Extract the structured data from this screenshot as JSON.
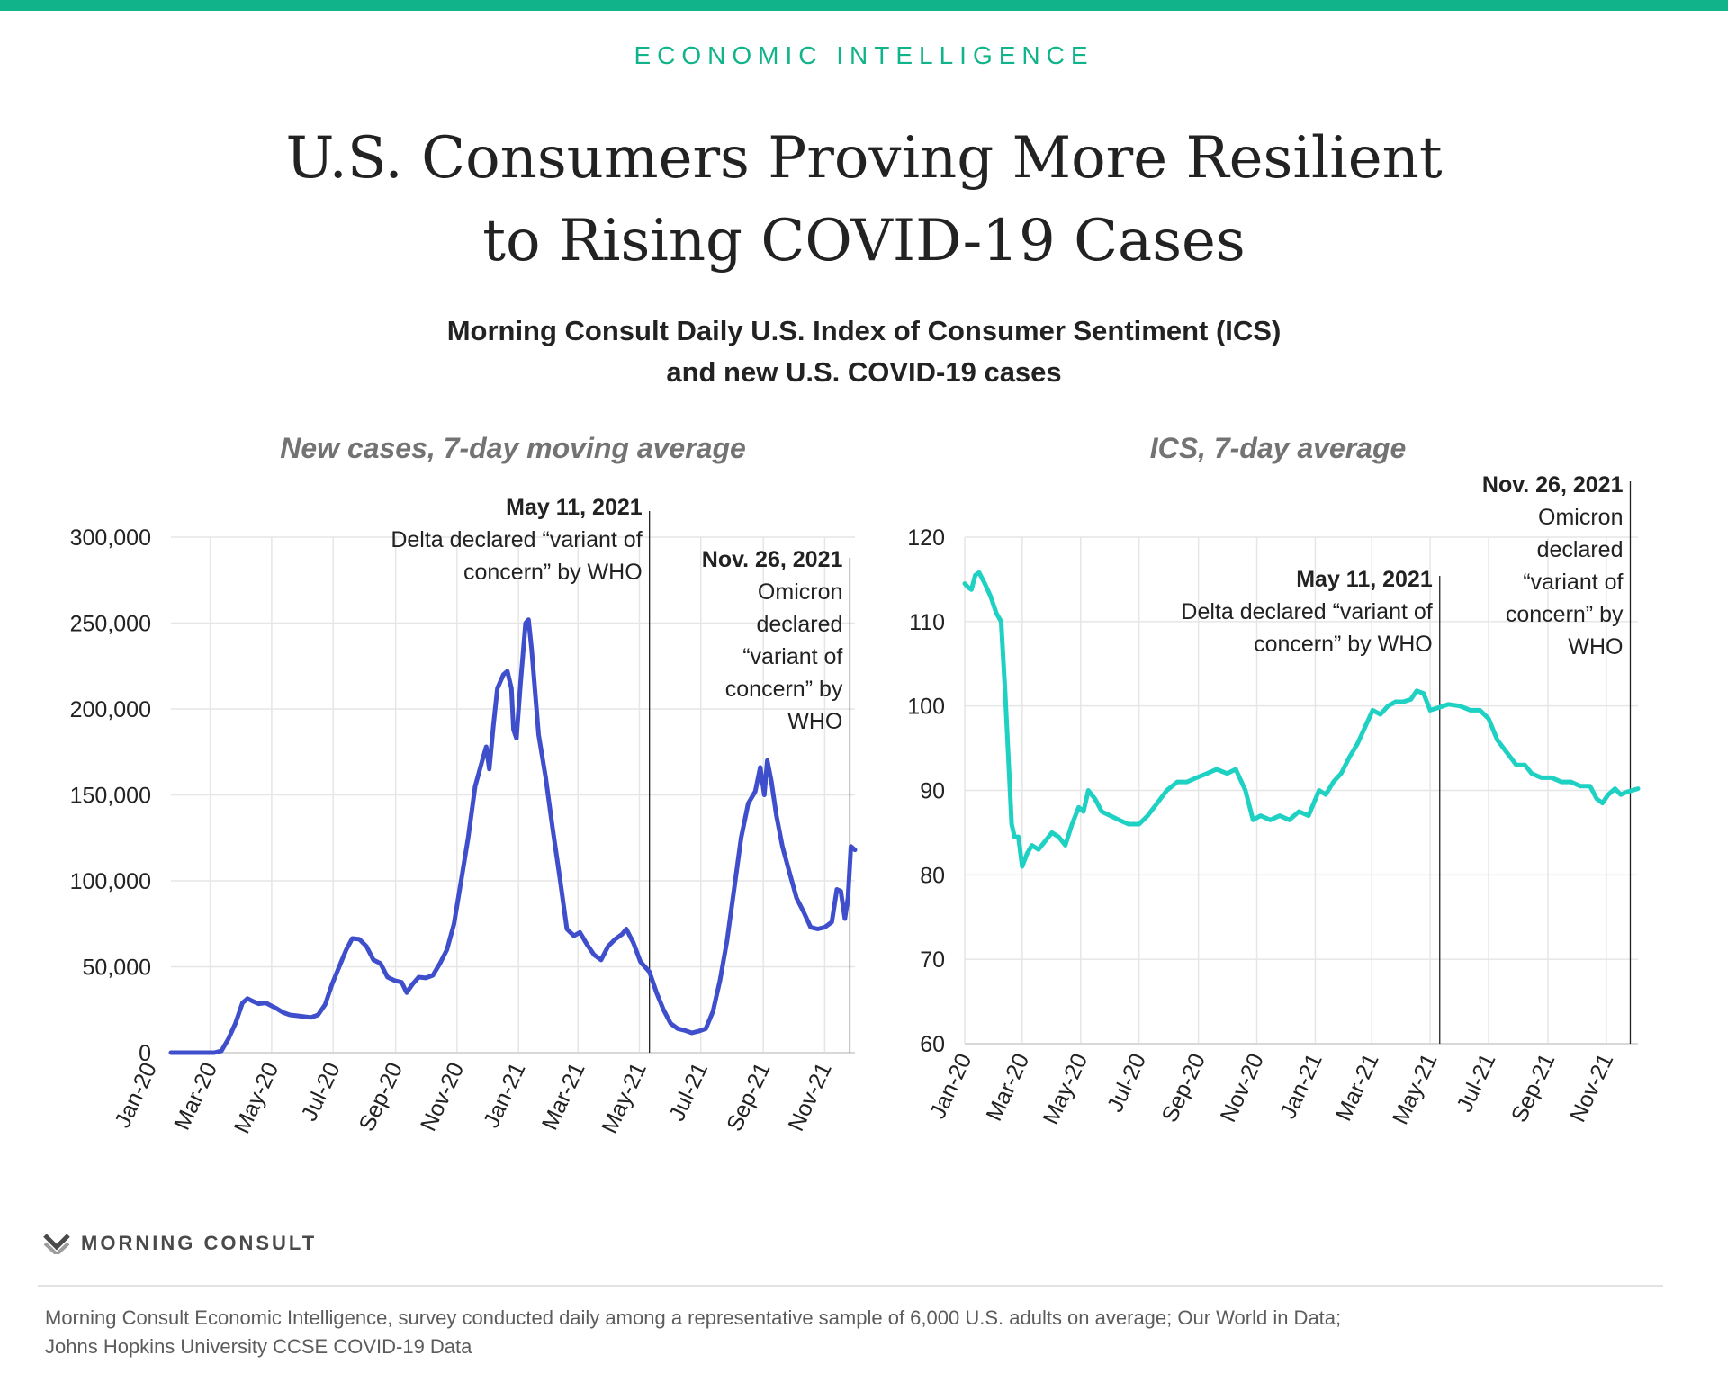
{
  "header": {
    "eyebrow": "ECONOMIC INTELLIGENCE",
    "title_line1": "U.S. Consumers Proving More Resilient",
    "title_line2": "to Rising COVID-19 Cases",
    "subtitle_line1": "Morning Consult Daily U.S. Index of Consumer Sentiment (ICS)",
    "subtitle_line2": "and new U.S. COVID-19 cases"
  },
  "colors": {
    "accent": "#11b48a",
    "cases_line": "#3f4fcc",
    "ics_line": "#1fd1c3",
    "grid": "#e6e6e6",
    "annotation_line": "#222222"
  },
  "chart_data": [
    {
      "type": "line",
      "title": "New cases, 7-day moving average",
      "xlabel": "",
      "ylabel": "",
      "x_range": [
        "2020-01-22",
        "2021-12-01"
      ],
      "ylim": [
        0,
        300000
      ],
      "yticks": [
        0,
        50000,
        100000,
        150000,
        200000,
        250000,
        300000
      ],
      "ytick_labels": [
        "0",
        "50,000",
        "100,000",
        "150,000",
        "200,000",
        "250,000",
        "300,000"
      ],
      "xtick_labels": [
        "Jan-20",
        "Mar-20",
        "May-20",
        "Jul-20",
        "Sep-20",
        "Nov-20",
        "Jan-21",
        "Mar-21",
        "May-21",
        "Jul-21",
        "Sep-21",
        "Nov-21"
      ],
      "grid": true,
      "legend": "none",
      "series": [
        {
          "points": [
            [
              "2020-01-22",
              0
            ],
            [
              "2020-03-05",
              0
            ],
            [
              "2020-03-12",
              1000
            ],
            [
              "2020-03-19",
              8000
            ],
            [
              "2020-03-26",
              17000
            ],
            [
              "2020-04-02",
              29000
            ],
            [
              "2020-04-07",
              31500
            ],
            [
              "2020-04-12",
              30000
            ],
            [
              "2020-04-18",
              28500
            ],
            [
              "2020-04-25",
              29000
            ],
            [
              "2020-05-05",
              26000
            ],
            [
              "2020-05-12",
              23500
            ],
            [
              "2020-05-19",
              22000
            ],
            [
              "2020-05-26",
              21500
            ],
            [
              "2020-06-02",
              21000
            ],
            [
              "2020-06-09",
              20500
            ],
            [
              "2020-06-16",
              22000
            ],
            [
              "2020-06-23",
              28000
            ],
            [
              "2020-06-30",
              40000
            ],
            [
              "2020-07-07",
              50000
            ],
            [
              "2020-07-14",
              60000
            ],
            [
              "2020-07-20",
              66500
            ],
            [
              "2020-07-27",
              66000
            ],
            [
              "2020-08-03",
              62000
            ],
            [
              "2020-08-10",
              54000
            ],
            [
              "2020-08-17",
              52000
            ],
            [
              "2020-08-24",
              44000
            ],
            [
              "2020-08-31",
              42000
            ],
            [
              "2020-09-07",
              41000
            ],
            [
              "2020-09-12",
              35000
            ],
            [
              "2020-09-18",
              40000
            ],
            [
              "2020-09-24",
              44000
            ],
            [
              "2020-10-01",
              43500
            ],
            [
              "2020-10-08",
              45000
            ],
            [
              "2020-10-15",
              52000
            ],
            [
              "2020-10-22",
              60000
            ],
            [
              "2020-10-29",
              75000
            ],
            [
              "2020-11-05",
              100000
            ],
            [
              "2020-11-12",
              125000
            ],
            [
              "2020-11-19",
              155000
            ],
            [
              "2020-11-26",
              170000
            ],
            [
              "2020-11-30",
              178000
            ],
            [
              "2020-12-03",
              165000
            ],
            [
              "2020-12-07",
              190000
            ],
            [
              "2020-12-11",
              212000
            ],
            [
              "2020-12-17",
              220000
            ],
            [
              "2020-12-21",
              222000
            ],
            [
              "2020-12-25",
              212000
            ],
            [
              "2020-12-27",
              188000
            ],
            [
              "2020-12-30",
              183000
            ],
            [
              "2021-01-03",
              215000
            ],
            [
              "2021-01-08",
              250000
            ],
            [
              "2021-01-11",
              252000
            ],
            [
              "2021-01-14",
              235000
            ],
            [
              "2021-01-21",
              185000
            ],
            [
              "2021-01-28",
              160000
            ],
            [
              "2021-02-04",
              130000
            ],
            [
              "2021-02-11",
              102000
            ],
            [
              "2021-02-18",
              72000
            ],
            [
              "2021-02-25",
              68000
            ],
            [
              "2021-03-03",
              70000
            ],
            [
              "2021-03-10",
              63000
            ],
            [
              "2021-03-17",
              57000
            ],
            [
              "2021-03-24",
              54000
            ],
            [
              "2021-03-31",
              62000
            ],
            [
              "2021-04-07",
              66000
            ],
            [
              "2021-04-14",
              69000
            ],
            [
              "2021-04-18",
              72000
            ],
            [
              "2021-04-25",
              64000
            ],
            [
              "2021-05-02",
              53000
            ],
            [
              "2021-05-11",
              47000
            ],
            [
              "2021-05-18",
              35000
            ],
            [
              "2021-05-25",
              25000
            ],
            [
              "2021-06-01",
              17000
            ],
            [
              "2021-06-08",
              14000
            ],
            [
              "2021-06-15",
              13000
            ],
            [
              "2021-06-22",
              11500
            ],
            [
              "2021-06-29",
              12500
            ],
            [
              "2021-07-06",
              14000
            ],
            [
              "2021-07-13",
              24000
            ],
            [
              "2021-07-20",
              42000
            ],
            [
              "2021-07-27",
              65000
            ],
            [
              "2021-08-03",
              95000
            ],
            [
              "2021-08-10",
              125000
            ],
            [
              "2021-08-17",
              145000
            ],
            [
              "2021-08-24",
              152000
            ],
            [
              "2021-08-29",
              166000
            ],
            [
              "2021-09-02",
              150000
            ],
            [
              "2021-09-05",
              170000
            ],
            [
              "2021-09-09",
              158000
            ],
            [
              "2021-09-14",
              138000
            ],
            [
              "2021-09-20",
              120000
            ],
            [
              "2021-09-27",
              105000
            ],
            [
              "2021-10-04",
              90000
            ],
            [
              "2021-10-11",
              82000
            ],
            [
              "2021-10-18",
              73000
            ],
            [
              "2021-10-25",
              72000
            ],
            [
              "2021-11-01",
              73000
            ],
            [
              "2021-11-08",
              76000
            ],
            [
              "2021-11-13",
              95000
            ],
            [
              "2021-11-17",
              94000
            ],
            [
              "2021-11-21",
              78000
            ],
            [
              "2021-11-24",
              90000
            ],
            [
              "2021-11-27",
              120000
            ],
            [
              "2021-12-01",
              118000
            ]
          ]
        }
      ],
      "annotations": [
        {
          "date": "2021-05-11",
          "label": "May 11, 2021",
          "lines": [
            "Delta declared “variant of",
            "concern” by WHO"
          ]
        },
        {
          "date": "2021-11-26",
          "label": "Nov. 26, 2021",
          "lines": [
            "Omicron",
            "declared",
            "“variant of",
            "concern” by",
            "WHO"
          ]
        }
      ]
    },
    {
      "type": "line",
      "title": "ICS, 7-day average",
      "xlabel": "",
      "ylabel": "",
      "x_range": [
        "2020-01-01",
        "2021-12-04"
      ],
      "ylim": [
        60,
        120
      ],
      "yticks": [
        60,
        70,
        80,
        90,
        100,
        110,
        120
      ],
      "ytick_labels": [
        "60",
        "70",
        "80",
        "90",
        "100",
        "110",
        "120"
      ],
      "xtick_labels": [
        "Jan-20",
        "Mar-20",
        "May-20",
        "Jul-20",
        "Sep-20",
        "Nov-20",
        "Jan-21",
        "Mar-21",
        "May-21",
        "Jul-21",
        "Sep-21",
        "Nov-21"
      ],
      "grid": true,
      "legend": "none",
      "series": [
        {
          "points": [
            [
              "2020-01-01",
              114.5
            ],
            [
              "2020-01-05",
              114.0
            ],
            [
              "2020-01-08",
              113.8
            ],
            [
              "2020-01-12",
              115.5
            ],
            [
              "2020-01-16",
              115.8
            ],
            [
              "2020-01-22",
              114.5
            ],
            [
              "2020-01-28",
              113.0
            ],
            [
              "2020-02-03",
              111.0
            ],
            [
              "2020-02-08",
              110.0
            ],
            [
              "2020-02-12",
              102.0
            ],
            [
              "2020-02-16",
              93.0
            ],
            [
              "2020-02-19",
              86.0
            ],
            [
              "2020-02-22",
              84.5
            ],
            [
              "2020-02-26",
              84.5
            ],
            [
              "2020-03-01",
              81.0
            ],
            [
              "2020-03-06",
              82.5
            ],
            [
              "2020-03-11",
              83.5
            ],
            [
              "2020-03-18",
              83.0
            ],
            [
              "2020-03-25",
              84.0
            ],
            [
              "2020-04-01",
              85.0
            ],
            [
              "2020-04-08",
              84.5
            ],
            [
              "2020-04-15",
              83.5
            ],
            [
              "2020-04-22",
              86.0
            ],
            [
              "2020-04-29",
              88.0
            ],
            [
              "2020-05-04",
              87.5
            ],
            [
              "2020-05-09",
              90.0
            ],
            [
              "2020-05-16",
              89.0
            ],
            [
              "2020-05-23",
              87.5
            ],
            [
              "2020-06-01",
              87.0
            ],
            [
              "2020-06-10",
              86.5
            ],
            [
              "2020-06-20",
              86.0
            ],
            [
              "2020-07-01",
              86.0
            ],
            [
              "2020-07-10",
              87.0
            ],
            [
              "2020-07-20",
              88.5
            ],
            [
              "2020-07-30",
              90.0
            ],
            [
              "2020-08-10",
              91.0
            ],
            [
              "2020-08-20",
              91.0
            ],
            [
              "2020-08-30",
              91.5
            ],
            [
              "2020-09-10",
              92.0
            ],
            [
              "2020-09-20",
              92.5
            ],
            [
              "2020-10-01",
              92.0
            ],
            [
              "2020-10-10",
              92.5
            ],
            [
              "2020-10-20",
              90.0
            ],
            [
              "2020-10-28",
              86.5
            ],
            [
              "2020-11-05",
              87.0
            ],
            [
              "2020-11-15",
              86.5
            ],
            [
              "2020-11-25",
              87.0
            ],
            [
              "2020-12-05",
              86.5
            ],
            [
              "2020-12-15",
              87.5
            ],
            [
              "2020-12-25",
              87.0
            ],
            [
              "2021-01-05",
              90.0
            ],
            [
              "2021-01-12",
              89.5
            ],
            [
              "2021-01-20",
              91.0
            ],
            [
              "2021-01-28",
              92.0
            ],
            [
              "2021-02-06",
              94.0
            ],
            [
              "2021-02-14",
              95.5
            ],
            [
              "2021-02-22",
              97.5
            ],
            [
              "2021-03-02",
              99.5
            ],
            [
              "2021-03-10",
              99.0
            ],
            [
              "2021-03-18",
              100.0
            ],
            [
              "2021-03-26",
              100.5
            ],
            [
              "2021-04-03",
              100.5
            ],
            [
              "2021-04-11",
              100.8
            ],
            [
              "2021-04-17",
              101.8
            ],
            [
              "2021-04-24",
              101.5
            ],
            [
              "2021-05-01",
              99.5
            ],
            [
              "2021-05-10",
              99.8
            ],
            [
              "2021-05-20",
              100.2
            ],
            [
              "2021-06-01",
              100.0
            ],
            [
              "2021-06-12",
              99.5
            ],
            [
              "2021-06-22",
              99.5
            ],
            [
              "2021-07-01",
              98.5
            ],
            [
              "2021-07-10",
              96.0
            ],
            [
              "2021-07-20",
              94.5
            ],
            [
              "2021-07-30",
              93.0
            ],
            [
              "2021-08-08",
              93.0
            ],
            [
              "2021-08-15",
              92.0
            ],
            [
              "2021-08-25",
              91.5
            ],
            [
              "2021-09-05",
              91.5
            ],
            [
              "2021-09-15",
              91.0
            ],
            [
              "2021-09-25",
              91.0
            ],
            [
              "2021-10-05",
              90.5
            ],
            [
              "2021-10-15",
              90.5
            ],
            [
              "2021-10-22",
              89.0
            ],
            [
              "2021-10-28",
              88.5
            ],
            [
              "2021-11-03",
              89.5
            ],
            [
              "2021-11-10",
              90.2
            ],
            [
              "2021-11-16",
              89.5
            ],
            [
              "2021-11-22",
              89.8
            ],
            [
              "2021-11-28",
              90.0
            ],
            [
              "2021-12-04",
              90.2
            ]
          ]
        }
      ],
      "annotations": [
        {
          "date": "2021-05-11",
          "label": "May 11, 2021",
          "lines": [
            "Delta declared “variant of",
            "concern” by WHO"
          ]
        },
        {
          "date": "2021-11-26",
          "label": "Nov. 26, 2021",
          "lines": [
            "Omicron",
            "declared",
            "“variant of",
            "concern” by",
            "WHO"
          ]
        }
      ]
    }
  ],
  "footer": {
    "brand": "MORNING CONSULT",
    "source_line1": "Morning Consult Economic Intelligence, survey conducted daily among a representative sample of 6,000 U.S. adults on average; Our World in Data;",
    "source_line2": "Johns Hopkins University CCSE COVID-19 Data"
  }
}
